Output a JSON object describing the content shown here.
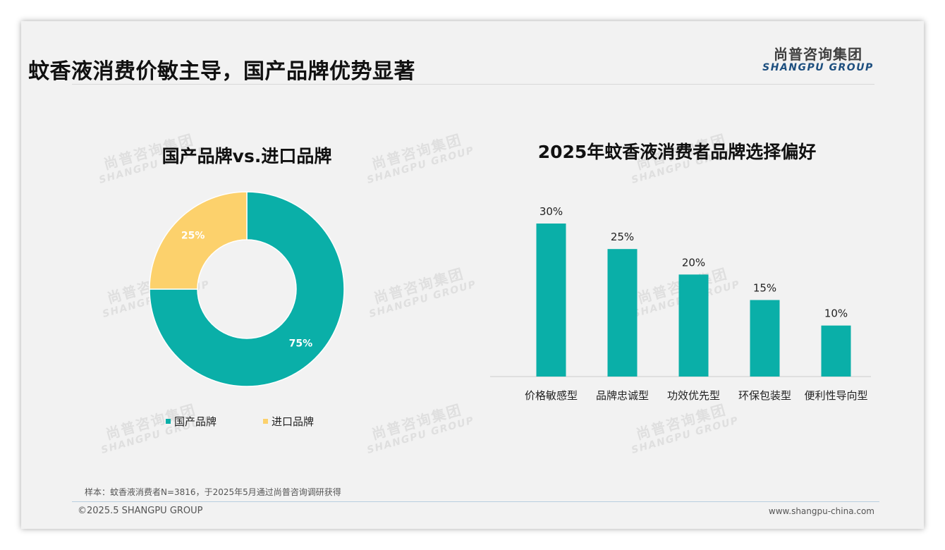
{
  "header": {
    "title": "蚊香液消费价敏主导，国产品牌优势显著",
    "logo_cn": "尚普咨询集团",
    "logo_en": "SHANGPU GROUP"
  },
  "watermark": {
    "cn": "尚普咨询集团",
    "en": "SHANGPU GROUP"
  },
  "colors": {
    "teal": "#0aafa8",
    "yellow": "#fcd16c"
  },
  "chart_data": [
    {
      "type": "pie",
      "title": "国产品牌vs.进口品牌",
      "categories": [
        "国产品牌",
        "进口品牌"
      ],
      "values": [
        75,
        25
      ],
      "labels": [
        "75%",
        "25%"
      ],
      "colors": [
        "#0aafa8",
        "#fcd16c"
      ],
      "legend": "bottom"
    },
    {
      "type": "bar",
      "title": "2025年蚊香液消费者品牌选择偏好",
      "categories": [
        "价格敏感型",
        "品牌忠诚型",
        "功效优先型",
        "环保包装型",
        "便利性导向型"
      ],
      "values": [
        30,
        25,
        20,
        15,
        10
      ],
      "labels": [
        "30%",
        "25%",
        "20%",
        "15%",
        "10%"
      ],
      "color": "#0aafa8",
      "ylim": [
        0,
        30
      ],
      "xlabel": "",
      "ylabel": ""
    }
  ],
  "footer": {
    "note": "样本：蚊香液消费者N=3816，于2025年5月通过尚普咨询调研获得",
    "copyright": "©2025.5 SHANGPU GROUP",
    "website": "www.shangpu-china.com"
  }
}
